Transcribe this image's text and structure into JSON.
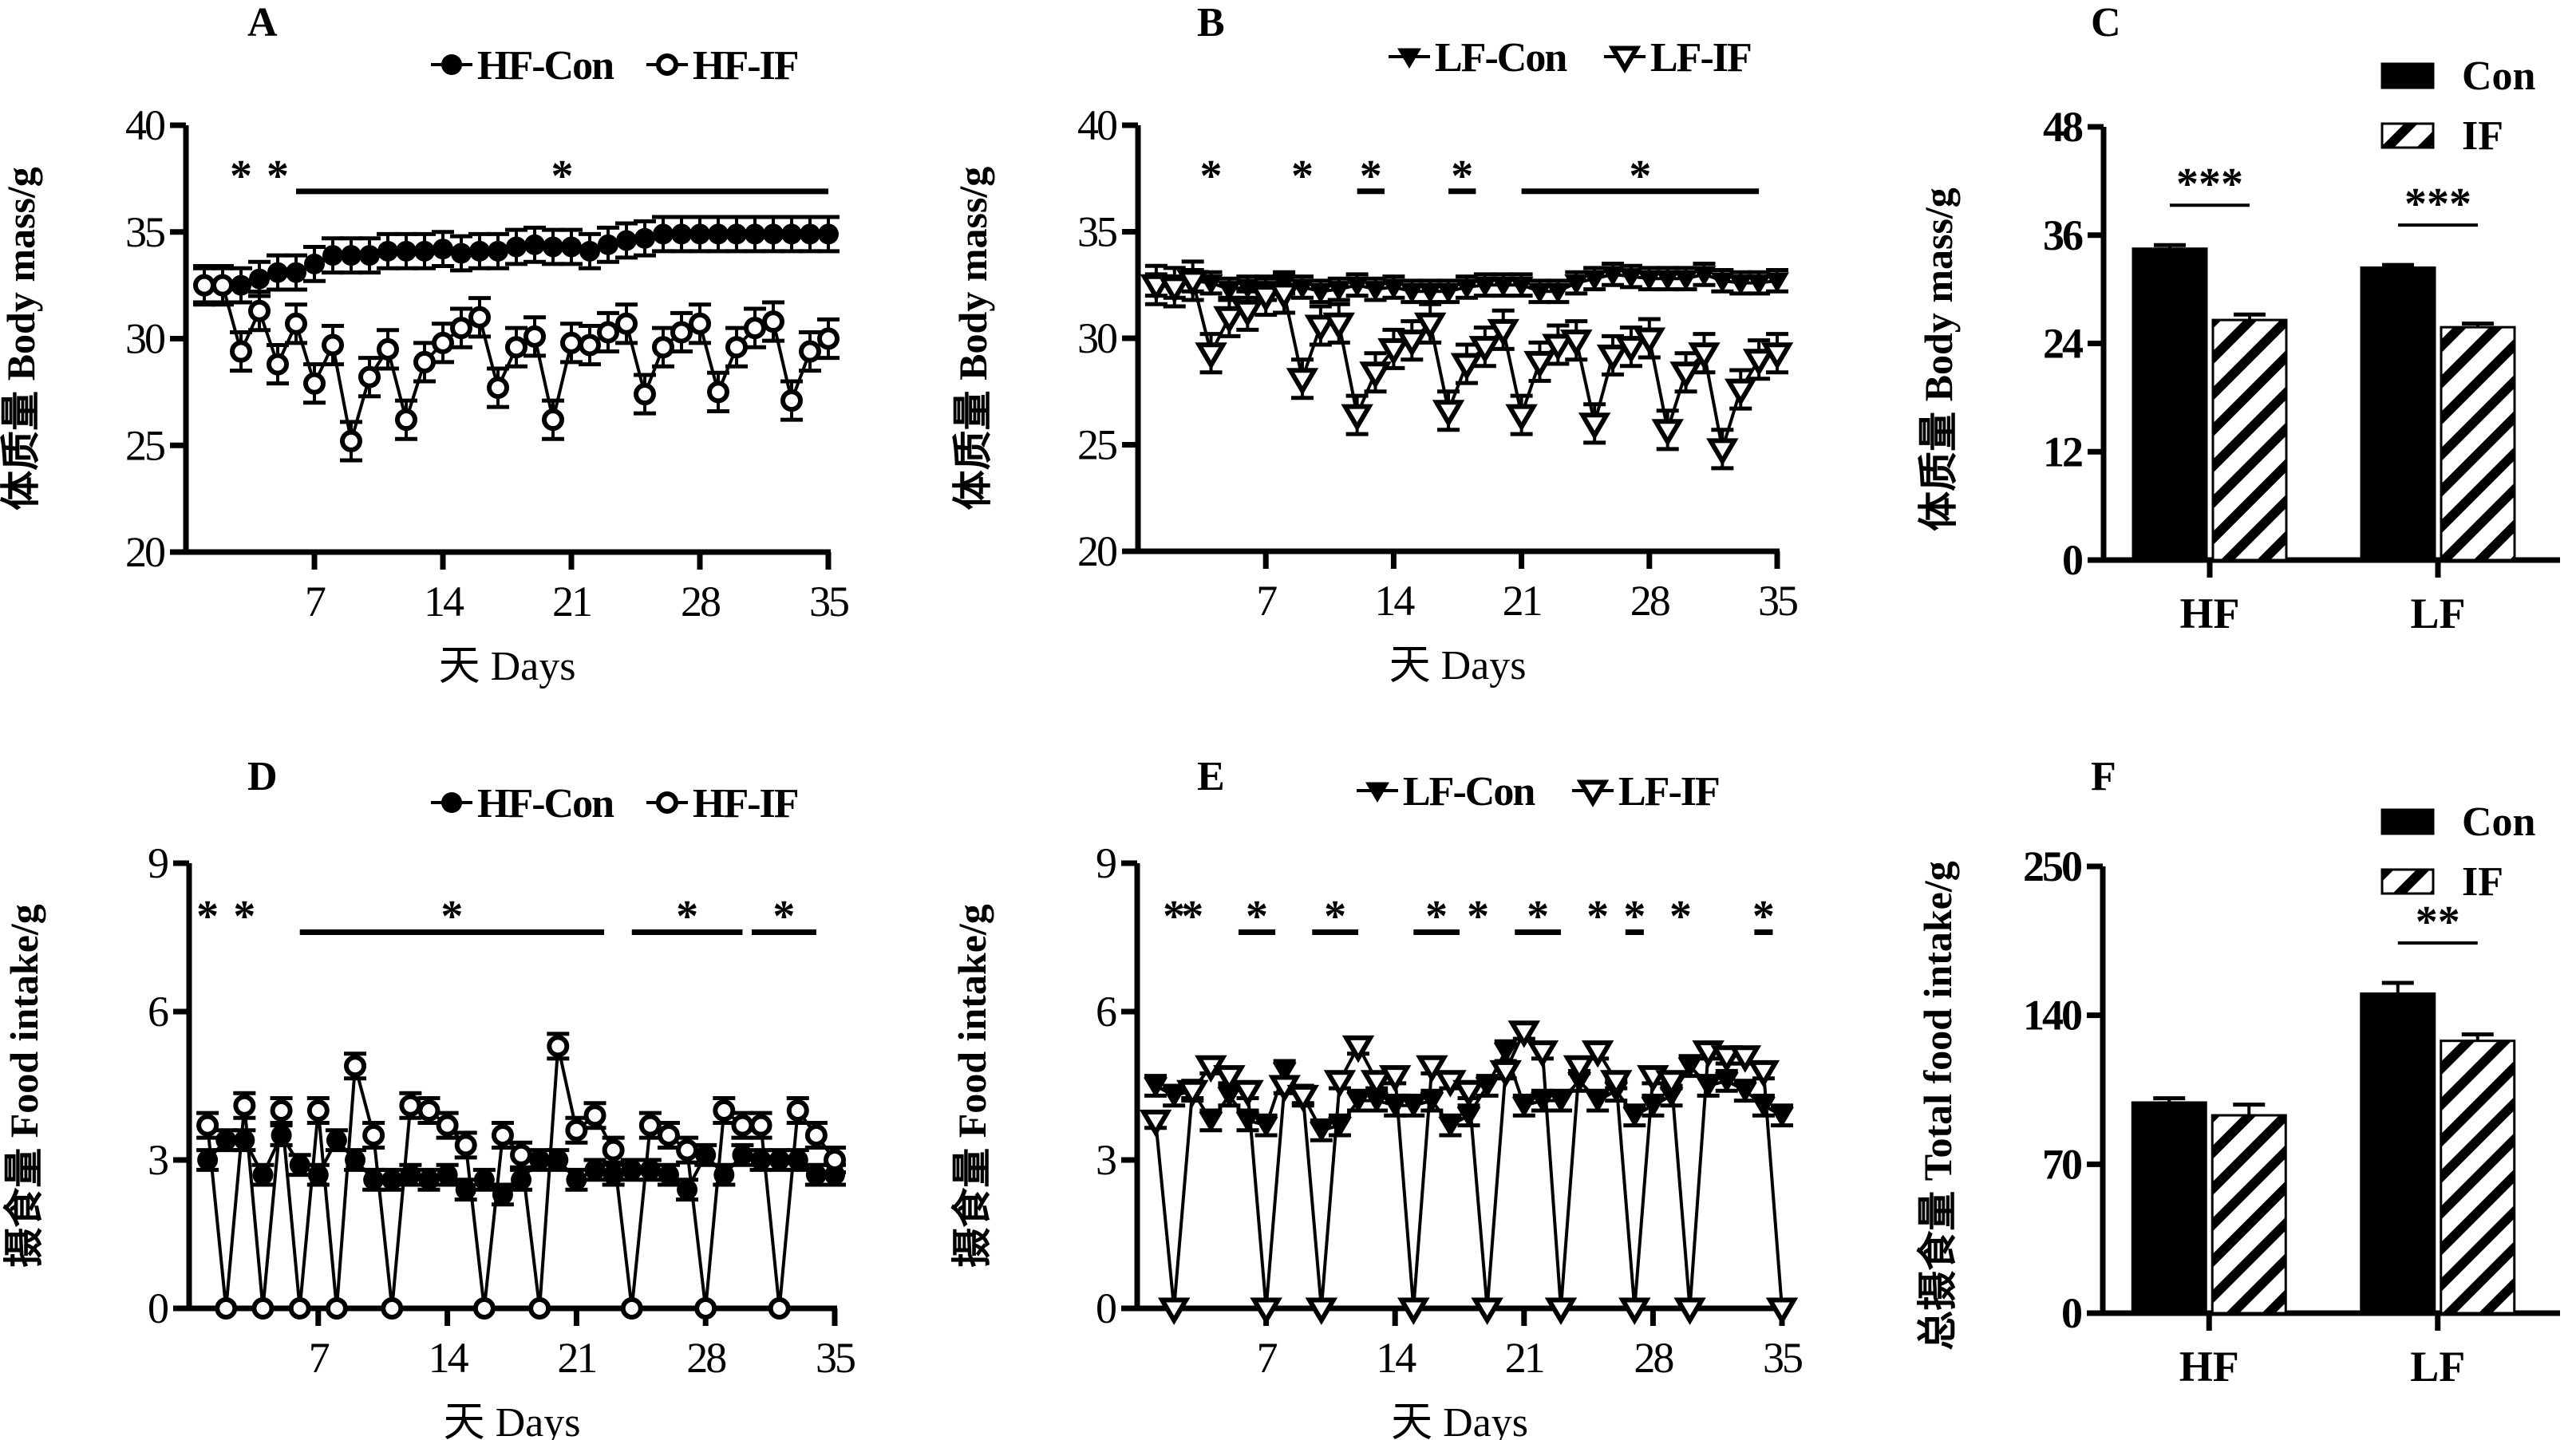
{
  "chart_data": [
    {
      "panel": "A",
      "type": "line",
      "title": "",
      "xlabel": "天 Days",
      "ylabel": "体质量 Body mass/g",
      "xlim": [
        0,
        35
      ],
      "ylim": [
        20,
        40
      ],
      "xticks": [
        7,
        14,
        21,
        28,
        35
      ],
      "yticks": [
        20,
        25,
        30,
        35,
        40
      ],
      "grid": false,
      "legend": "top-right",
      "x": [
        1,
        2,
        3,
        4,
        5,
        6,
        7,
        8,
        9,
        10,
        11,
        12,
        13,
        14,
        15,
        16,
        17,
        18,
        19,
        20,
        21,
        22,
        23,
        24,
        25,
        26,
        27,
        28,
        29,
        30,
        31,
        32,
        33,
        34,
        35
      ],
      "series": [
        {
          "name": "HF-Con",
          "marker": "filled-circle",
          "values": [
            32.5,
            32.5,
            32.5,
            32.8,
            33.1,
            33.1,
            33.5,
            33.9,
            33.9,
            33.9,
            34.1,
            34.1,
            34.1,
            34.2,
            34.0,
            34.1,
            34.1,
            34.3,
            34.4,
            34.3,
            34.3,
            34.1,
            34.4,
            34.6,
            34.7,
            34.9,
            34.9,
            34.9,
            34.9,
            34.9,
            34.9,
            34.9,
            34.9,
            34.9,
            34.9
          ],
          "sem": 0.8
        },
        {
          "name": "HF-IF",
          "marker": "open-circle",
          "values": [
            32.5,
            32.5,
            29.4,
            31.3,
            28.8,
            30.7,
            27.9,
            29.7,
            25.2,
            28.2,
            29.5,
            26.2,
            28.9,
            29.8,
            30.5,
            31.0,
            27.7,
            29.6,
            30.1,
            26.2,
            29.8,
            29.7,
            30.3,
            30.7,
            27.4,
            29.6,
            30.3,
            30.7,
            27.5,
            29.6,
            30.5,
            30.8,
            27.1,
            29.4,
            30.0
          ],
          "sem": 0.9
        }
      ],
      "annotations": [
        {
          "text": "*",
          "day": 3
        },
        {
          "text": "*",
          "day": 5
        },
        {
          "text": "*",
          "from": 6,
          "to": 35,
          "bar": true
        }
      ]
    },
    {
      "panel": "B",
      "type": "line",
      "title": "",
      "xlabel": "天 Days",
      "ylabel": "体质量 Body mass/g",
      "xlim": [
        0,
        35
      ],
      "ylim": [
        20,
        40
      ],
      "xticks": [
        7,
        14,
        21,
        28,
        35
      ],
      "yticks": [
        20,
        25,
        30,
        35,
        40
      ],
      "grid": false,
      "legend": "top-right",
      "x": [
        1,
        2,
        3,
        4,
        5,
        6,
        7,
        8,
        9,
        10,
        11,
        12,
        13,
        14,
        15,
        16,
        17,
        18,
        19,
        20,
        21,
        22,
        23,
        24,
        25,
        26,
        27,
        28,
        29,
        30,
        31,
        32,
        33,
        34,
        35
      ],
      "series": [
        {
          "name": "LF-Con",
          "marker": "filled-triangle-down",
          "values": [
            32.5,
            32.4,
            32.7,
            32.6,
            32.3,
            32.4,
            32.3,
            32.6,
            32.4,
            32.2,
            32.3,
            32.5,
            32.3,
            32.4,
            32.2,
            32.2,
            32.2,
            32.4,
            32.5,
            32.5,
            32.5,
            32.2,
            32.2,
            32.6,
            32.8,
            33.0,
            32.9,
            32.8,
            32.8,
            32.8,
            33.0,
            32.7,
            32.6,
            32.6,
            32.7
          ],
          "sem": 0.5
        },
        {
          "name": "LF-IF",
          "marker": "open-triangle-down",
          "values": [
            32.5,
            32.4,
            32.7,
            29.3,
            31.0,
            31.3,
            32.0,
            32.1,
            28.1,
            30.6,
            30.7,
            26.4,
            28.4,
            29.5,
            29.9,
            30.7,
            26.6,
            28.8,
            29.6,
            30.4,
            26.4,
            28.9,
            29.7,
            29.9,
            26.0,
            29.2,
            29.6,
            30.0,
            25.7,
            28.4,
            29.3,
            24.8,
            27.6,
            29.0,
            29.3
          ],
          "sem": 0.9
        }
      ],
      "annotations": [
        {
          "text": "*",
          "day": 4
        },
        {
          "text": "*",
          "day": 9
        },
        {
          "text": "*",
          "from": 12,
          "to": 13.5,
          "bar": true
        },
        {
          "text": "*",
          "from": 17,
          "to": 18.5,
          "bar": true
        },
        {
          "text": "*",
          "from": 21,
          "to": 34,
          "bar": true
        }
      ]
    },
    {
      "panel": "C",
      "type": "bar",
      "title": "",
      "xlabel": "",
      "ylabel": "体质量 Body mass/g",
      "categories": [
        "HF",
        "LF"
      ],
      "ylim": [
        0,
        48
      ],
      "yticks": [
        0,
        12,
        24,
        36,
        48
      ],
      "grid": false,
      "legend": "top-right",
      "series": [
        {
          "name": "Con",
          "pattern": "solid",
          "values": [
            34.5,
            32.4
          ],
          "sem": [
            0.4,
            0.3
          ]
        },
        {
          "name": "IF",
          "pattern": "hatched",
          "values": [
            26.6,
            25.8
          ],
          "sem": [
            0.6,
            0.4
          ]
        }
      ],
      "annotations": [
        {
          "text": "***",
          "category": "HF"
        },
        {
          "text": "***",
          "category": "LF"
        }
      ]
    },
    {
      "panel": "D",
      "type": "line",
      "title": "",
      "xlabel": "天 Days",
      "ylabel": "摄食量 Food intake/g",
      "xlim": [
        0,
        35
      ],
      "ylim": [
        0,
        9
      ],
      "xticks": [
        7,
        14,
        21,
        28,
        35
      ],
      "yticks": [
        0,
        3,
        6,
        9
      ],
      "grid": false,
      "legend": "top-right",
      "x": [
        1,
        2,
        3,
        4,
        5,
        6,
        7,
        8,
        9,
        10,
        11,
        12,
        13,
        14,
        15,
        16,
        17,
        18,
        19,
        20,
        21,
        22,
        23,
        24,
        25,
        26,
        27,
        28,
        29,
        30,
        31,
        32,
        33,
        34,
        35
      ],
      "series": [
        {
          "name": "HF-Con",
          "marker": "filled-circle",
          "values": [
            3.0,
            3.4,
            3.4,
            2.7,
            3.5,
            2.9,
            2.7,
            3.4,
            3.0,
            2.6,
            2.6,
            2.7,
            2.6,
            2.7,
            2.4,
            2.6,
            2.3,
            2.6,
            3.0,
            3.0,
            2.6,
            2.8,
            2.7,
            2.8,
            2.8,
            2.7,
            2.4,
            3.1,
            2.7,
            3.1,
            3.0,
            3.0,
            3.0,
            2.7,
            2.7
          ],
          "sem": 0.2
        },
        {
          "name": "HF-IF",
          "marker": "open-circle",
          "values": [
            3.7,
            0,
            4.1,
            0,
            4.0,
            0,
            4.0,
            0,
            4.9,
            3.5,
            0,
            4.1,
            4.0,
            3.7,
            3.3,
            0,
            3.5,
            3.1,
            0,
            5.3,
            3.6,
            3.9,
            3.2,
            0,
            3.7,
            3.5,
            3.2,
            0,
            4.0,
            3.7,
            3.7,
            0,
            4.0,
            3.5,
            3.0
          ],
          "sem": 0.25
        }
      ],
      "annotations": [
        {
          "text": "*",
          "day": 1
        },
        {
          "text": "*",
          "day": 3
        },
        {
          "text": "*",
          "from": 6,
          "to": 22.5,
          "bar": true
        },
        {
          "text": "*",
          "from": 24,
          "to": 30,
          "bar": true
        },
        {
          "text": "*",
          "from": 30.5,
          "to": 34,
          "bar": true
        }
      ]
    },
    {
      "panel": "E",
      "type": "line",
      "title": "",
      "xlabel": "天 Days",
      "ylabel": "摄食量 Food intake/g",
      "xlim": [
        0,
        35
      ],
      "ylim": [
        0,
        9
      ],
      "xticks": [
        7,
        14,
        21,
        28,
        35
      ],
      "yticks": [
        0,
        3,
        6,
        9
      ],
      "grid": false,
      "legend": "top-right",
      "x": [
        1,
        2,
        3,
        4,
        5,
        6,
        7,
        8,
        9,
        10,
        11,
        12,
        13,
        14,
        15,
        16,
        17,
        18,
        19,
        20,
        21,
        22,
        23,
        24,
        25,
        26,
        27,
        28,
        29,
        30,
        31,
        32,
        33,
        34,
        35
      ],
      "series": [
        {
          "name": "LF-Con",
          "marker": "filled-triangle-down",
          "values": [
            4.5,
            4.3,
            4.4,
            3.8,
            4.3,
            3.8,
            3.7,
            4.8,
            4.3,
            3.6,
            3.7,
            4.2,
            4.2,
            4.1,
            4.1,
            4.2,
            3.7,
            3.9,
            4.5,
            5.2,
            4.1,
            4.2,
            4.2,
            4.6,
            4.2,
            4.4,
            3.9,
            4.1,
            4.3,
            4.9,
            4.5,
            4.6,
            4.4,
            4.1,
            3.9
          ],
          "sem": 0.2
        },
        {
          "name": "LF-IF",
          "marker": "open-triangle-down",
          "values": [
            3.8,
            0,
            4.4,
            4.9,
            4.7,
            4.4,
            0,
            4.5,
            4.3,
            0,
            4.6,
            5.3,
            4.6,
            4.7,
            0,
            4.9,
            4.6,
            4.4,
            0,
            4.8,
            5.6,
            5.2,
            0,
            4.9,
            5.2,
            4.6,
            0,
            4.7,
            4.6,
            0,
            5.2,
            5.1,
            5.1,
            4.8,
            0
          ],
          "sem": 0.15
        }
      ],
      "annotations": [
        {
          "text": "*",
          "day": 2
        },
        {
          "text": "*",
          "day": 3
        },
        {
          "text": "*",
          "from": 5.5,
          "to": 7.5,
          "bar": true
        },
        {
          "text": "*",
          "from": 9.5,
          "to": 12,
          "bar": true
        },
        {
          "text": "*",
          "from": 15,
          "to": 17.5,
          "bar": true
        },
        {
          "text": "*",
          "day": 18.5
        },
        {
          "text": "*",
          "from": 20.5,
          "to": 23,
          "bar": true
        },
        {
          "text": "*",
          "day": 25
        },
        {
          "text": "*",
          "from": 26.5,
          "to": 27.5,
          "bar": true
        },
        {
          "text": "*",
          "day": 29.5
        },
        {
          "text": "*",
          "from": 33.5,
          "to": 34.5,
          "bar": true
        }
      ]
    },
    {
      "panel": "F",
      "type": "bar",
      "title": "",
      "xlabel": "",
      "ylabel": "总摄食量 Total food intake/g",
      "categories": [
        "HF",
        "LF"
      ],
      "ylim": [
        0,
        250
      ],
      "yticks": [
        0,
        70,
        140,
        250
      ],
      "axis_note": "segmented axis, ticks equally spaced",
      "grid": false,
      "legend": "top-right",
      "series": [
        {
          "name": "Con",
          "pattern": "solid",
          "values": [
            99,
            156
          ],
          "sem": [
            2,
            8
          ]
        },
        {
          "name": "IF",
          "pattern": "hatched",
          "values": [
            93,
            128
          ],
          "sem": [
            5,
            3
          ]
        }
      ],
      "annotations": [
        {
          "text": "**",
          "category": "LF"
        }
      ]
    }
  ]
}
